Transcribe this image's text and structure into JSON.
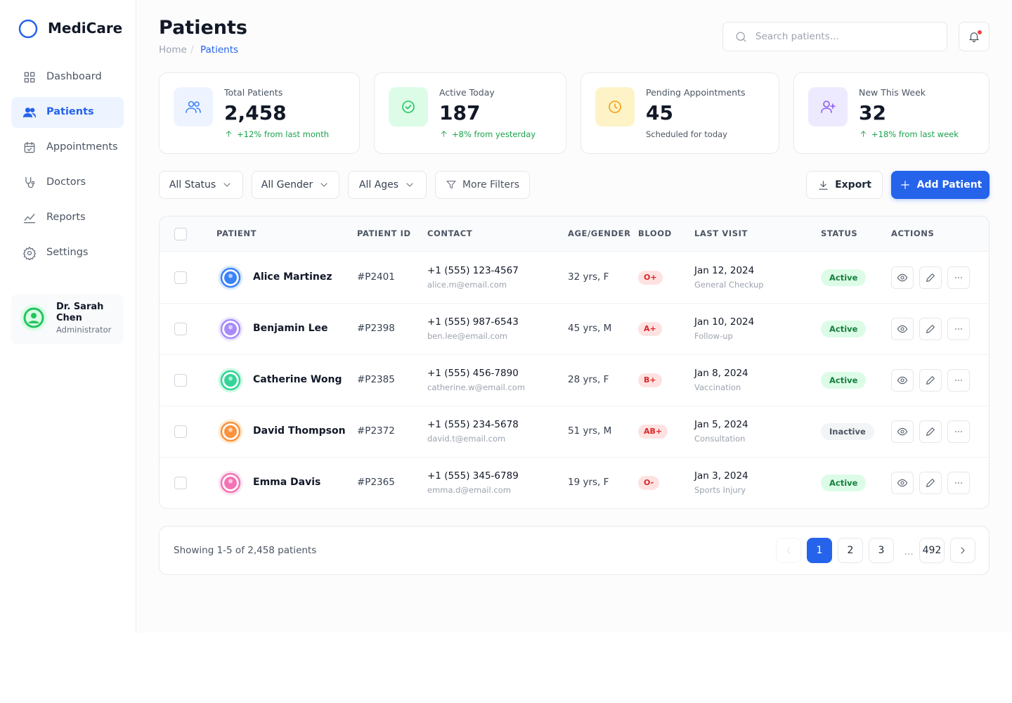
{
  "sidebar": {
    "brand": "MediCare",
    "nav": [
      "Dashboard",
      "Patients",
      "Appointments",
      "Doctors",
      "Reports",
      "Settings"
    ],
    "user": {
      "name": "Dr. Sarah Chen",
      "role": "Administrator"
    }
  },
  "header": {
    "title": "Patients",
    "breadcrumb": [
      "Home",
      "Patients"
    ],
    "breadcrumb_separator": "/",
    "search_placeholder": "Search patients..."
  },
  "stats": [
    {
      "label": "Total Patients",
      "value": "2,458",
      "note": "+12% from last month"
    },
    {
      "label": "Active Today",
      "value": "187",
      "note": "+8% from yesterday"
    },
    {
      "label": "Pending Appointments",
      "value": "45",
      "note": "Scheduled for today"
    },
    {
      "label": "New This Week",
      "value": "32",
      "note": "+18% from last week"
    }
  ],
  "filters": [
    "All Status",
    "All Gender",
    "All Ages",
    "More Filters"
  ],
  "actions": [
    "Export",
    "Add Patient"
  ],
  "table": {
    "columns": [
      "PATIENT",
      "PATIENT ID",
      "CONTACT",
      "AGE/GENDER",
      "BLOOD",
      "LAST VISIT",
      "STATUS",
      "ACTIONS"
    ],
    "rows": [
      {
        "name": "Alice Martinez",
        "id": "#P2401",
        "phone": "+1 (555) 123-4567",
        "email": "alice.m@email.com",
        "age": "32 yrs, F",
        "blood": "O+",
        "date": "Jan 12, 2024",
        "visit": "General Checkup",
        "status": "Active"
      },
      {
        "name": "Benjamin Lee",
        "id": "#P2398",
        "phone": "+1 (555) 987-6543",
        "email": "ben.lee@email.com",
        "age": "45 yrs, M",
        "blood": "A+",
        "date": "Jan 10, 2024",
        "visit": "Follow-up",
        "status": "Active"
      },
      {
        "name": "Catherine Wong",
        "id": "#P2385",
        "phone": "+1 (555) 456-7890",
        "email": "catherine.w@email.com",
        "age": "28 yrs, F",
        "blood": "B+",
        "date": "Jan 8, 2024",
        "visit": "Vaccination",
        "status": "Active"
      },
      {
        "name": "David Thompson",
        "id": "#P2372",
        "phone": "+1 (555) 234-5678",
        "email": "david.t@email.com",
        "age": "51 yrs, M",
        "blood": "AB+",
        "date": "Jan 5, 2024",
        "visit": "Consultation",
        "status": "Inactive"
      },
      {
        "name": "Emma Davis",
        "id": "#P2365",
        "phone": "+1 (555) 345-6789",
        "email": "emma.d@email.com",
        "age": "19 yrs, F",
        "blood": "O-",
        "date": "Jan 3, 2024",
        "visit": "Sports Injury",
        "status": "Active"
      }
    ]
  },
  "pagination": {
    "summary": "Showing 1-5 of 2,458 patients",
    "pages": [
      "1",
      "2",
      "3",
      "...",
      "492"
    ]
  }
}
